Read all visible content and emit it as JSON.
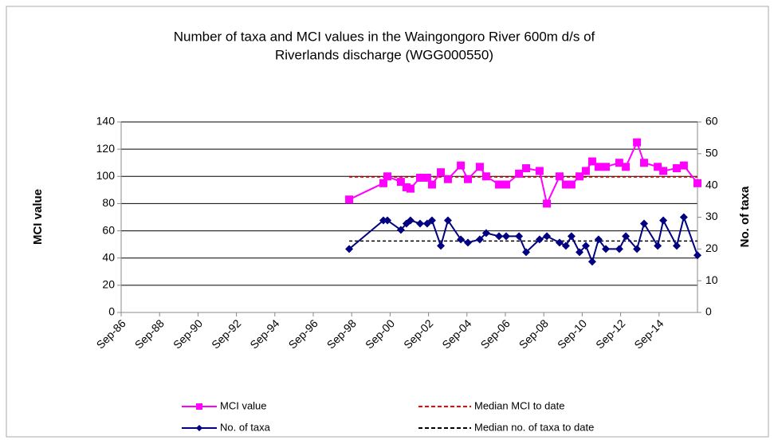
{
  "chart_data": {
    "type": "line",
    "title": [
      "Number of taxa and MCI values in the Waingongoro River 600m d/s of",
      "Riverlands discharge (WGG000550)"
    ],
    "y_label": "MCI value",
    "y2_label": "No. of taxa",
    "x": [
      1998.54,
      2000.32,
      2000.53,
      2001.23,
      2001.52,
      2001.73,
      2002.23,
      2002.6,
      2002.85,
      2003.31,
      2003.68,
      2004.35,
      2004.72,
      2005.34,
      2005.67,
      2006.34,
      2006.71,
      2007.38,
      2007.75,
      2008.45,
      2008.83,
      2009.49,
      2009.82,
      2010.11,
      2010.53,
      2010.86,
      2011.19,
      2011.52,
      2011.9,
      2012.6,
      2012.94,
      2013.52,
      2013.89,
      2014.6,
      2014.89,
      2015.59,
      2015.96,
      2016.67
    ],
    "series": [
      {
        "name": "MCI value",
        "color": "#ff00ff",
        "marker": "square",
        "axis": "y",
        "values": [
          83,
          95,
          100,
          96,
          92,
          91,
          99,
          99,
          94,
          103,
          98,
          108,
          98,
          107,
          100,
          94,
          94,
          102,
          106,
          104,
          80,
          100,
          94,
          94,
          100,
          104,
          111,
          107,
          107,
          110,
          107,
          125,
          110,
          107,
          104,
          106,
          108,
          95
        ]
      },
      {
        "name": "No. of taxa",
        "color": "#000080",
        "marker": "diamond",
        "axis": "y2",
        "values": [
          20,
          29,
          29,
          26,
          28,
          29,
          28,
          28,
          29,
          21,
          29,
          23,
          22,
          23,
          25,
          24,
          24,
          24,
          19,
          23,
          24,
          22,
          21,
          24,
          19,
          21,
          16,
          23,
          20,
          20,
          24,
          20,
          28,
          21,
          29,
          21,
          30,
          18
        ]
      }
    ],
    "reference_lines": [
      {
        "name": "Median MCI to date",
        "value": 99.5,
        "color": "#ff0000",
        "axis": "y"
      },
      {
        "name": "Median no. of taxa to date",
        "value": 22.5,
        "color": "#000000",
        "axis": "y2"
      }
    ],
    "xlim": [
      1986.67,
      2016.67
    ],
    "xticks": [
      {
        "value": 1986.67,
        "label": "Sep-86"
      },
      {
        "value": 1988.67,
        "label": "Sep-88"
      },
      {
        "value": 1990.67,
        "label": "Sep-90"
      },
      {
        "value": 1992.67,
        "label": "Sep-92"
      },
      {
        "value": 1994.67,
        "label": "Sep-94"
      },
      {
        "value": 1996.67,
        "label": "Sep-96"
      },
      {
        "value": 1998.67,
        "label": "Sep-98"
      },
      {
        "value": 2000.67,
        "label": "Sep-00"
      },
      {
        "value": 2002.67,
        "label": "Sep-02"
      },
      {
        "value": 2004.67,
        "label": "Sep-04"
      },
      {
        "value": 2006.67,
        "label": "Sep-06"
      },
      {
        "value": 2008.67,
        "label": "Sep-08"
      },
      {
        "value": 2010.67,
        "label": "Sep-10"
      },
      {
        "value": 2012.67,
        "label": "Sep-12"
      },
      {
        "value": 2014.67,
        "label": "Sep-14"
      }
    ],
    "ylim": [
      0,
      140
    ],
    "yticks": [
      0,
      20,
      40,
      60,
      80,
      100,
      120,
      140
    ],
    "y2lim": [
      0,
      60
    ],
    "y2ticks": [
      0,
      10,
      20,
      30,
      40,
      50,
      60
    ],
    "grid": true
  }
}
